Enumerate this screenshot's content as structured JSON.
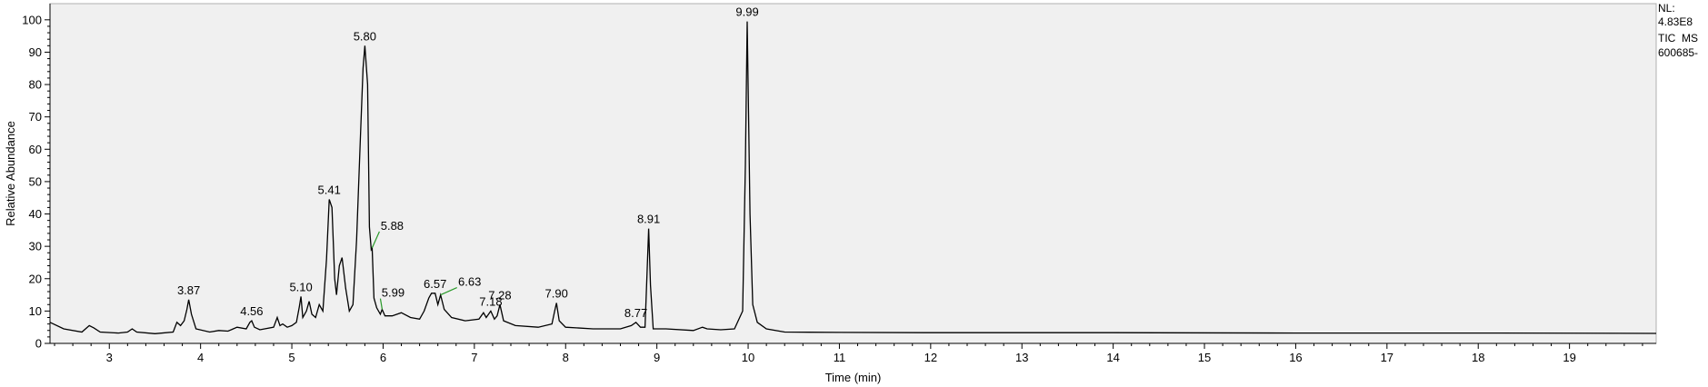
{
  "info": {
    "nl_label": "NL:",
    "nl_value": "4.83E8",
    "scan_type": "TIC  MS",
    "sample_id": "600685-"
  },
  "chart_data": {
    "type": "line",
    "xlabel": "Time (min)",
    "ylabel": "Relative Abundance",
    "xlim": [
      2.35,
      19.95
    ],
    "ylim": [
      0,
      105
    ],
    "xticks": [
      3,
      4,
      5,
      6,
      7,
      8,
      9,
      10,
      11,
      12,
      13,
      14,
      15,
      16,
      17,
      18,
      19
    ],
    "yticks": [
      0,
      10,
      20,
      30,
      40,
      50,
      60,
      70,
      80,
      90,
      100
    ],
    "grid": false,
    "colors": {
      "trace": "#000000",
      "marker": "#2a9a2a",
      "plot_bg": "#f0f0f0"
    },
    "series": [
      {
        "x": [
          2.35,
          2.5,
          2.7,
          2.78,
          2.83,
          2.9,
          3.1,
          3.2,
          3.25,
          3.3,
          3.5,
          3.7,
          3.74,
          3.78,
          3.82,
          3.85,
          3.87,
          3.9,
          3.95,
          4.1,
          4.2,
          4.3,
          4.4,
          4.5,
          4.54,
          4.56,
          4.59,
          4.65,
          4.8,
          4.84,
          4.87,
          4.9,
          4.95,
          5.0,
          5.05,
          5.08,
          5.1,
          5.12,
          5.16,
          5.19,
          5.22,
          5.26,
          5.3,
          5.34,
          5.38,
          5.41,
          5.44,
          5.47,
          5.49,
          5.52,
          5.55,
          5.59,
          5.63,
          5.67,
          5.71,
          5.75,
          5.78,
          5.8,
          5.83,
          5.85,
          5.87,
          5.88,
          5.9,
          5.93,
          5.97,
          5.99,
          6.02,
          6.1,
          6.2,
          6.3,
          6.4,
          6.45,
          6.5,
          6.53,
          6.57,
          6.6,
          6.63,
          6.67,
          6.75,
          6.9,
          7.05,
          7.1,
          7.13,
          7.18,
          7.22,
          7.25,
          7.28,
          7.32,
          7.45,
          7.7,
          7.85,
          7.88,
          7.9,
          7.93,
          8.0,
          8.3,
          8.6,
          8.72,
          8.77,
          8.82,
          8.87,
          8.89,
          8.91,
          8.93,
          8.96,
          9.1,
          9.4,
          9.5,
          9.55,
          9.7,
          9.85,
          9.94,
          9.97,
          9.99,
          10.02,
          10.05,
          10.1,
          10.2,
          10.4,
          11.0,
          12.0,
          14.0,
          16.0,
          18.0,
          19.95
        ],
        "y": [
          6.5,
          4.5,
          3.5,
          5.5,
          4.8,
          3.5,
          3.2,
          3.5,
          4.5,
          3.5,
          3.0,
          3.5,
          6.5,
          5.5,
          7.0,
          10.5,
          13.5,
          9.0,
          4.5,
          3.5,
          4.0,
          3.8,
          5.0,
          4.5,
          6.5,
          7.0,
          5.0,
          4.2,
          5.0,
          8.0,
          5.5,
          6.0,
          5.0,
          5.5,
          6.5,
          11.0,
          14.5,
          8.0,
          10.0,
          13.0,
          9.0,
          8.0,
          12.0,
          10.0,
          26.0,
          44.5,
          42.0,
          20.0,
          15.0,
          24.0,
          26.5,
          17.0,
          10.0,
          12.0,
          32.0,
          63.0,
          85.0,
          92.0,
          80.0,
          36.0,
          29.0,
          29.5,
          14.0,
          11.0,
          9.0,
          10.5,
          8.5,
          8.5,
          9.5,
          8.0,
          7.5,
          10.0,
          14.0,
          15.5,
          15.5,
          12.0,
          15.0,
          10.5,
          8.0,
          7.0,
          7.5,
          9.5,
          8.0,
          10.0,
          7.5,
          8.5,
          12.0,
          7.0,
          5.5,
          5.0,
          6.0,
          10.0,
          12.5,
          7.0,
          5.0,
          4.5,
          4.5,
          5.5,
          6.5,
          5.0,
          5.0,
          20.0,
          35.5,
          18.0,
          4.5,
          4.5,
          4.0,
          5.0,
          4.5,
          4.2,
          4.5,
          10.0,
          55.0,
          99.5,
          40.0,
          12.0,
          6.5,
          4.5,
          3.5,
          3.4,
          3.3,
          3.3,
          3.2,
          3.2,
          3.1
        ]
      }
    ],
    "peaks": [
      {
        "label": "3.87",
        "rt": 3.87,
        "height": 13.5
      },
      {
        "label": "4.56",
        "rt": 4.56,
        "height": 7.0
      },
      {
        "label": "5.10",
        "rt": 5.1,
        "height": 14.5
      },
      {
        "label": "5.41",
        "rt": 5.41,
        "height": 44.5
      },
      {
        "label": "5.80",
        "rt": 5.8,
        "height": 92.0
      },
      {
        "label": "5.88",
        "rt": 5.88,
        "height": 29.5,
        "connector": true
      },
      {
        "label": "5.99",
        "rt": 5.99,
        "height": 10.5,
        "connector": true
      },
      {
        "label": "6.57",
        "rt": 6.57,
        "height": 15.5
      },
      {
        "label": "6.63",
        "rt": 6.63,
        "height": 15.0,
        "connector": true
      },
      {
        "label": "7.18",
        "rt": 7.18,
        "height": 10.0
      },
      {
        "label": "7.28",
        "rt": 7.28,
        "height": 12.0
      },
      {
        "label": "7.90",
        "rt": 7.9,
        "height": 12.5
      },
      {
        "label": "8.77",
        "rt": 8.77,
        "height": 6.5
      },
      {
        "label": "8.91",
        "rt": 8.91,
        "height": 35.5
      },
      {
        "label": "9.99",
        "rt": 9.99,
        "height": 99.5
      }
    ]
  }
}
